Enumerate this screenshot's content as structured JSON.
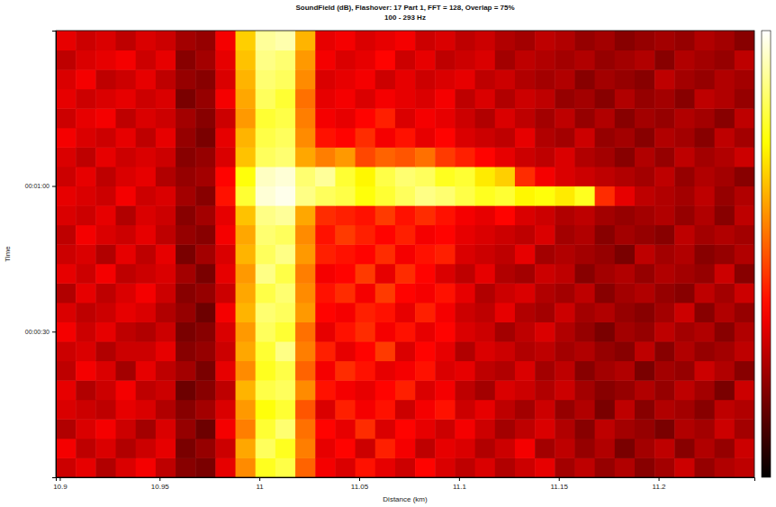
{
  "chart_data": {
    "type": "heatmap",
    "title": "SoundField (dB), Flashover: 17 Part 1, FFT = 128, Overlap = 75%",
    "subtitle": "100 - 293 Hz",
    "x_label": "Distance (km)",
    "y_label": "Time",
    "x": [
      10.903,
      10.913,
      10.923,
      10.933,
      10.943,
      10.953,
      10.963,
      10.973,
      10.983,
      10.993,
      11.003,
      11.013,
      11.023,
      11.033,
      11.043,
      11.053,
      11.063,
      11.073,
      11.083,
      11.093,
      11.103,
      11.113,
      11.123,
      11.133,
      11.143,
      11.153,
      11.163,
      11.173,
      11.183,
      11.193,
      11.203,
      11.213,
      11.223,
      11.233,
      11.243
    ],
    "y": [
      2,
      6,
      10,
      14,
      18,
      22,
      26,
      30,
      34,
      38,
      42,
      46,
      50,
      54,
      58,
      62,
      66,
      70,
      74,
      78,
      82,
      86,
      90
    ],
    "z": [
      [
        55,
        57,
        53,
        56,
        58,
        54,
        50,
        49,
        57,
        69,
        79,
        81,
        66,
        58,
        56,
        60,
        57,
        55,
        59,
        56,
        54,
        56,
        53,
        55,
        57,
        52,
        54,
        51,
        53,
        50,
        52,
        55,
        51,
        53,
        54
      ],
      [
        58,
        54,
        56,
        53,
        55,
        57,
        49,
        51,
        55,
        71,
        82,
        79,
        68,
        57,
        59,
        55,
        61,
        58,
        54,
        57,
        56,
        53,
        55,
        58,
        52,
        54,
        51,
        53,
        49,
        52,
        54,
        50,
        53,
        51,
        55
      ],
      [
        53,
        56,
        58,
        55,
        52,
        56,
        51,
        48,
        58,
        68,
        80,
        83,
        67,
        59,
        57,
        62,
        56,
        59,
        57,
        55,
        58,
        55,
        52,
        54,
        56,
        53,
        50,
        54,
        52,
        51,
        49,
        53,
        52,
        55,
        52
      ],
      [
        56,
        55,
        54,
        57,
        56,
        53,
        50,
        52,
        56,
        70,
        78,
        80,
        65,
        56,
        61,
        58,
        60,
        55,
        58,
        60,
        55,
        57,
        54,
        52,
        55,
        51,
        53,
        49,
        54,
        50,
        53,
        52,
        50,
        54,
        53
      ],
      [
        57,
        53,
        55,
        58,
        54,
        55,
        48,
        50,
        54,
        72,
        81,
        82,
        69,
        60,
        58,
        57,
        59,
        61,
        56,
        58,
        54,
        52,
        56,
        55,
        53,
        55,
        52,
        50,
        51,
        53,
        51,
        54,
        52,
        49,
        55
      ],
      [
        54,
        58,
        56,
        52,
        57,
        54,
        52,
        49,
        57,
        69,
        79,
        81,
        66,
        58,
        62,
        60,
        57,
        58,
        60,
        56,
        57,
        54,
        53,
        56,
        52,
        54,
        50,
        52,
        53,
        49,
        52,
        51,
        55,
        53,
        50
      ],
      [
        55,
        56,
        53,
        55,
        55,
        57,
        50,
        51,
        55,
        71,
        80,
        84,
        68,
        61,
        57,
        59,
        63,
        56,
        59,
        57,
        53,
        56,
        55,
        53,
        54,
        52,
        53,
        51,
        50,
        54,
        50,
        53,
        51,
        52,
        54
      ],
      [
        58,
        55,
        57,
        54,
        53,
        55,
        49,
        50,
        56,
        70,
        82,
        80,
        67,
        57,
        60,
        62,
        58,
        60,
        57,
        59,
        56,
        55,
        52,
        54,
        56,
        53,
        51,
        49,
        52,
        51,
        54,
        52,
        53,
        50,
        53
      ],
      [
        56,
        54,
        55,
        57,
        56,
        53,
        51,
        48,
        58,
        72,
        83,
        82,
        70,
        59,
        58,
        61,
        60,
        57,
        61,
        58,
        55,
        54,
        57,
        53,
        52,
        55,
        52,
        53,
        51,
        50,
        52,
        55,
        50,
        53,
        51
      ],
      [
        53,
        57,
        54,
        56,
        58,
        55,
        50,
        51,
        55,
        71,
        81,
        83,
        69,
        60,
        62,
        58,
        63,
        59,
        58,
        60,
        57,
        53,
        55,
        56,
        53,
        52,
        54,
        50,
        52,
        53,
        51,
        50,
        54,
        52,
        55
      ],
      [
        57,
        55,
        58,
        54,
        55,
        56,
        52,
        49,
        57,
        70,
        84,
        81,
        68,
        58,
        59,
        63,
        57,
        62,
        59,
        56,
        54,
        57,
        53,
        52,
        55,
        54,
        50,
        52,
        53,
        51,
        53,
        52,
        51,
        55,
        50
      ],
      [
        55,
        56,
        53,
        57,
        54,
        57,
        49,
        52,
        56,
        72,
        82,
        84,
        70,
        61,
        60,
        59,
        62,
        58,
        60,
        61,
        56,
        55,
        54,
        57,
        52,
        53,
        52,
        51,
        49,
        54,
        52,
        53,
        50,
        51,
        53
      ],
      [
        54,
        58,
        56,
        55,
        57,
        54,
        51,
        50,
        58,
        71,
        83,
        82,
        69,
        60,
        63,
        61,
        59,
        61,
        58,
        59,
        57,
        56,
        55,
        54,
        56,
        52,
        53,
        50,
        52,
        51,
        50,
        54,
        52,
        53,
        52
      ],
      [
        56,
        55,
        57,
        53,
        56,
        55,
        50,
        52,
        57,
        73,
        84,
        85,
        71,
        62,
        61,
        60,
        63,
        60,
        62,
        60,
        58,
        57,
        59,
        56,
        55,
        53,
        54,
        52,
        51,
        52,
        53,
        51,
        53,
        50,
        54
      ],
      [
        57,
        56,
        55,
        58,
        55,
        56,
        52,
        50,
        60,
        80,
        88,
        89,
        84,
        82,
        81,
        78,
        80,
        82,
        84,
        83,
        81,
        79,
        80,
        77,
        78,
        76,
        79,
        62,
        57,
        54,
        53,
        52,
        54,
        51,
        53
      ],
      [
        55,
        57,
        54,
        56,
        57,
        53,
        51,
        52,
        59,
        78,
        87,
        88,
        83,
        85,
        80,
        77,
        81,
        83,
        82,
        79,
        80,
        76,
        74,
        62,
        58,
        56,
        55,
        54,
        53,
        52,
        54,
        51,
        53,
        52,
        50
      ],
      [
        56,
        54,
        57,
        55,
        56,
        55,
        50,
        51,
        56,
        73,
        82,
        83,
        71,
        68,
        70,
        64,
        66,
        65,
        67,
        63,
        61,
        59,
        57,
        55,
        54,
        56,
        53,
        52,
        50,
        53,
        51,
        54,
        52,
        53,
        55
      ],
      [
        58,
        56,
        55,
        57,
        54,
        57,
        51,
        49,
        57,
        72,
        81,
        82,
        69,
        60,
        59,
        62,
        58,
        60,
        57,
        59,
        56,
        55,
        54,
        57,
        53,
        52,
        55,
        51,
        52,
        50,
        53,
        52,
        50,
        54,
        52
      ],
      [
        55,
        57,
        58,
        54,
        56,
        55,
        52,
        50,
        55,
        70,
        80,
        81,
        68,
        58,
        57,
        59,
        61,
        56,
        58,
        57,
        55,
        53,
        56,
        54,
        52,
        54,
        51,
        53,
        50,
        52,
        51,
        53,
        52,
        50,
        54
      ],
      [
        57,
        55,
        56,
        57,
        55,
        56,
        49,
        51,
        58,
        71,
        82,
        80,
        67,
        57,
        58,
        56,
        58,
        57,
        56,
        58,
        54,
        56,
        53,
        55,
        54,
        51,
        52,
        50,
        53,
        51,
        52,
        50,
        54,
        53,
        51
      ],
      [
        56,
        58,
        54,
        55,
        57,
        54,
        51,
        50,
        56,
        72,
        83,
        82,
        69,
        56,
        57,
        58,
        55,
        57,
        55,
        56,
        57,
        54,
        55,
        53,
        52,
        53,
        50,
        52,
        51,
        50,
        54,
        52,
        51,
        53,
        52
      ],
      [
        54,
        56,
        57,
        58,
        55,
        57,
        50,
        52,
        57,
        73,
        84,
        83,
        70,
        58,
        56,
        57,
        59,
        55,
        57,
        54,
        55,
        56,
        52,
        54,
        53,
        52,
        53,
        51,
        52,
        53,
        50,
        53,
        52,
        51,
        54
      ],
      [
        57,
        55,
        56,
        54,
        56,
        55,
        52,
        51,
        58,
        74,
        85,
        86,
        72,
        57,
        58,
        56,
        57,
        58,
        55,
        56,
        54,
        55,
        53,
        52,
        54,
        53,
        51,
        52,
        50,
        51,
        52,
        51,
        53,
        52,
        50
      ]
    ],
    "xlim": [
      10.898,
      11.248
    ],
    "xticks": [
      10.9,
      10.95,
      11,
      11.05,
      11.1,
      11.15,
      11.2
    ],
    "ylim": [
      0,
      92
    ],
    "yticks": [
      {
        "value": 30,
        "label": "00:00:30"
      },
      {
        "value": 60,
        "label": "00:01:00"
      }
    ],
    "colorbar": {
      "range": [
        40,
        90
      ]
    }
  }
}
